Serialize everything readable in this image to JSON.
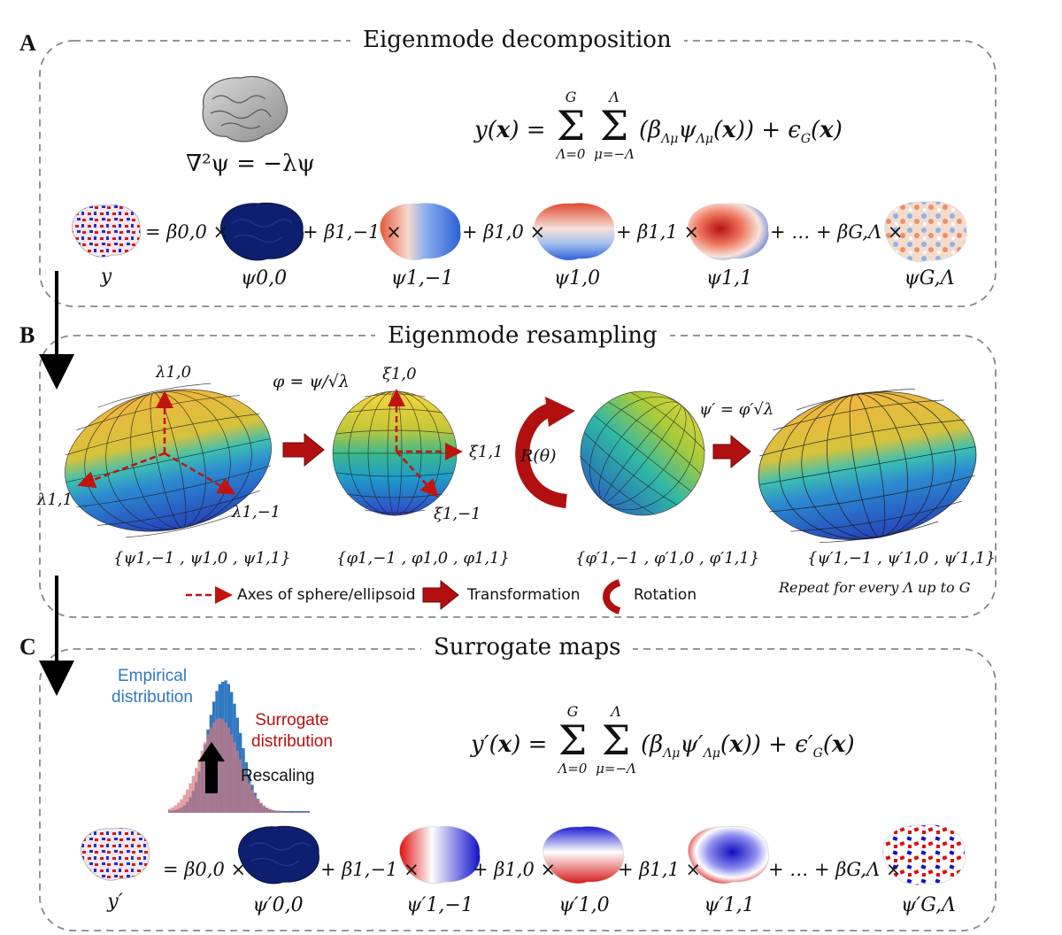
{
  "panels": {
    "a": {
      "letter": "A",
      "title": "Eigenmode decomposition",
      "helmholtz": "∇²ψ = −λψ",
      "equation": "y(x) = Σ Σ (β_Λμ ψ_Λμ(x)) + ε_G(x)",
      "sum_upper_outer": "G",
      "sum_upper_inner": "Λ",
      "sum_lower_outer": "Λ=0",
      "sum_lower_inner": "μ=−Λ",
      "terms": [
        "= β0,0 ×",
        "+ β1,−1 ×",
        "+ β1,0 ×",
        "+ β1,1 ×",
        "+ … + βG,Λ ×"
      ],
      "labels": [
        "y",
        "ψ0,0",
        "ψ1,−1",
        "ψ1,0",
        "ψ1,1",
        "ψG,Λ"
      ]
    },
    "b": {
      "letter": "B",
      "title": "Eigenmode resampling",
      "phi_eq": "φ = ψ/√λ",
      "psi_prime_eq": "ψ′ = φ′√λ",
      "rotation": "R(θ)",
      "axes_ellipsoid": [
        "λ1,0",
        "λ1,1",
        "λ1,−1"
      ],
      "axes_sphere": [
        "ξ1,0",
        "ξ1,1",
        "ξ1,−1"
      ],
      "sets": [
        "{ψ1,−1 , ψ1,0 , ψ1,1}",
        "{φ1,−1 , φ1,0 , φ1,1}",
        "{φ′1,−1 , φ′1,0 , φ′1,1}",
        "{ψ′1,−1 , ψ′1,0 , ψ′1,1}"
      ],
      "legend": {
        "axes": "Axes of sphere/ellipsoid",
        "transformation": "Transformation",
        "rotation": "Rotation"
      },
      "repeat_note": "Repeat for every Λ up to G"
    },
    "c": {
      "letter": "C",
      "title": "Surrogate maps",
      "empirical": "Empirical distribution",
      "surrogate": "Surrogate distribution",
      "rescaling": "Rescaling",
      "equation": "y′(x) = Σ Σ (β_Λμ ψ′_Λμ(x)) + ε′_G(x)",
      "terms": [
        "= β0,0 ×",
        "+ β1,−1 ×",
        "+ β1,0 ×",
        "+ β1,1 ×",
        "+ … + βG,Λ ×"
      ],
      "labels": [
        "y′",
        "ψ′0,0",
        "ψ′1,−1",
        "ψ′1,0",
        "ψ′1,1",
        "ψ′G,Λ"
      ]
    }
  },
  "colors": {
    "red_arrow": "#c0140f",
    "empirical": "#2e78c2",
    "surrogate": "#b80f0f",
    "mode_dark": "#0d1f6e"
  }
}
